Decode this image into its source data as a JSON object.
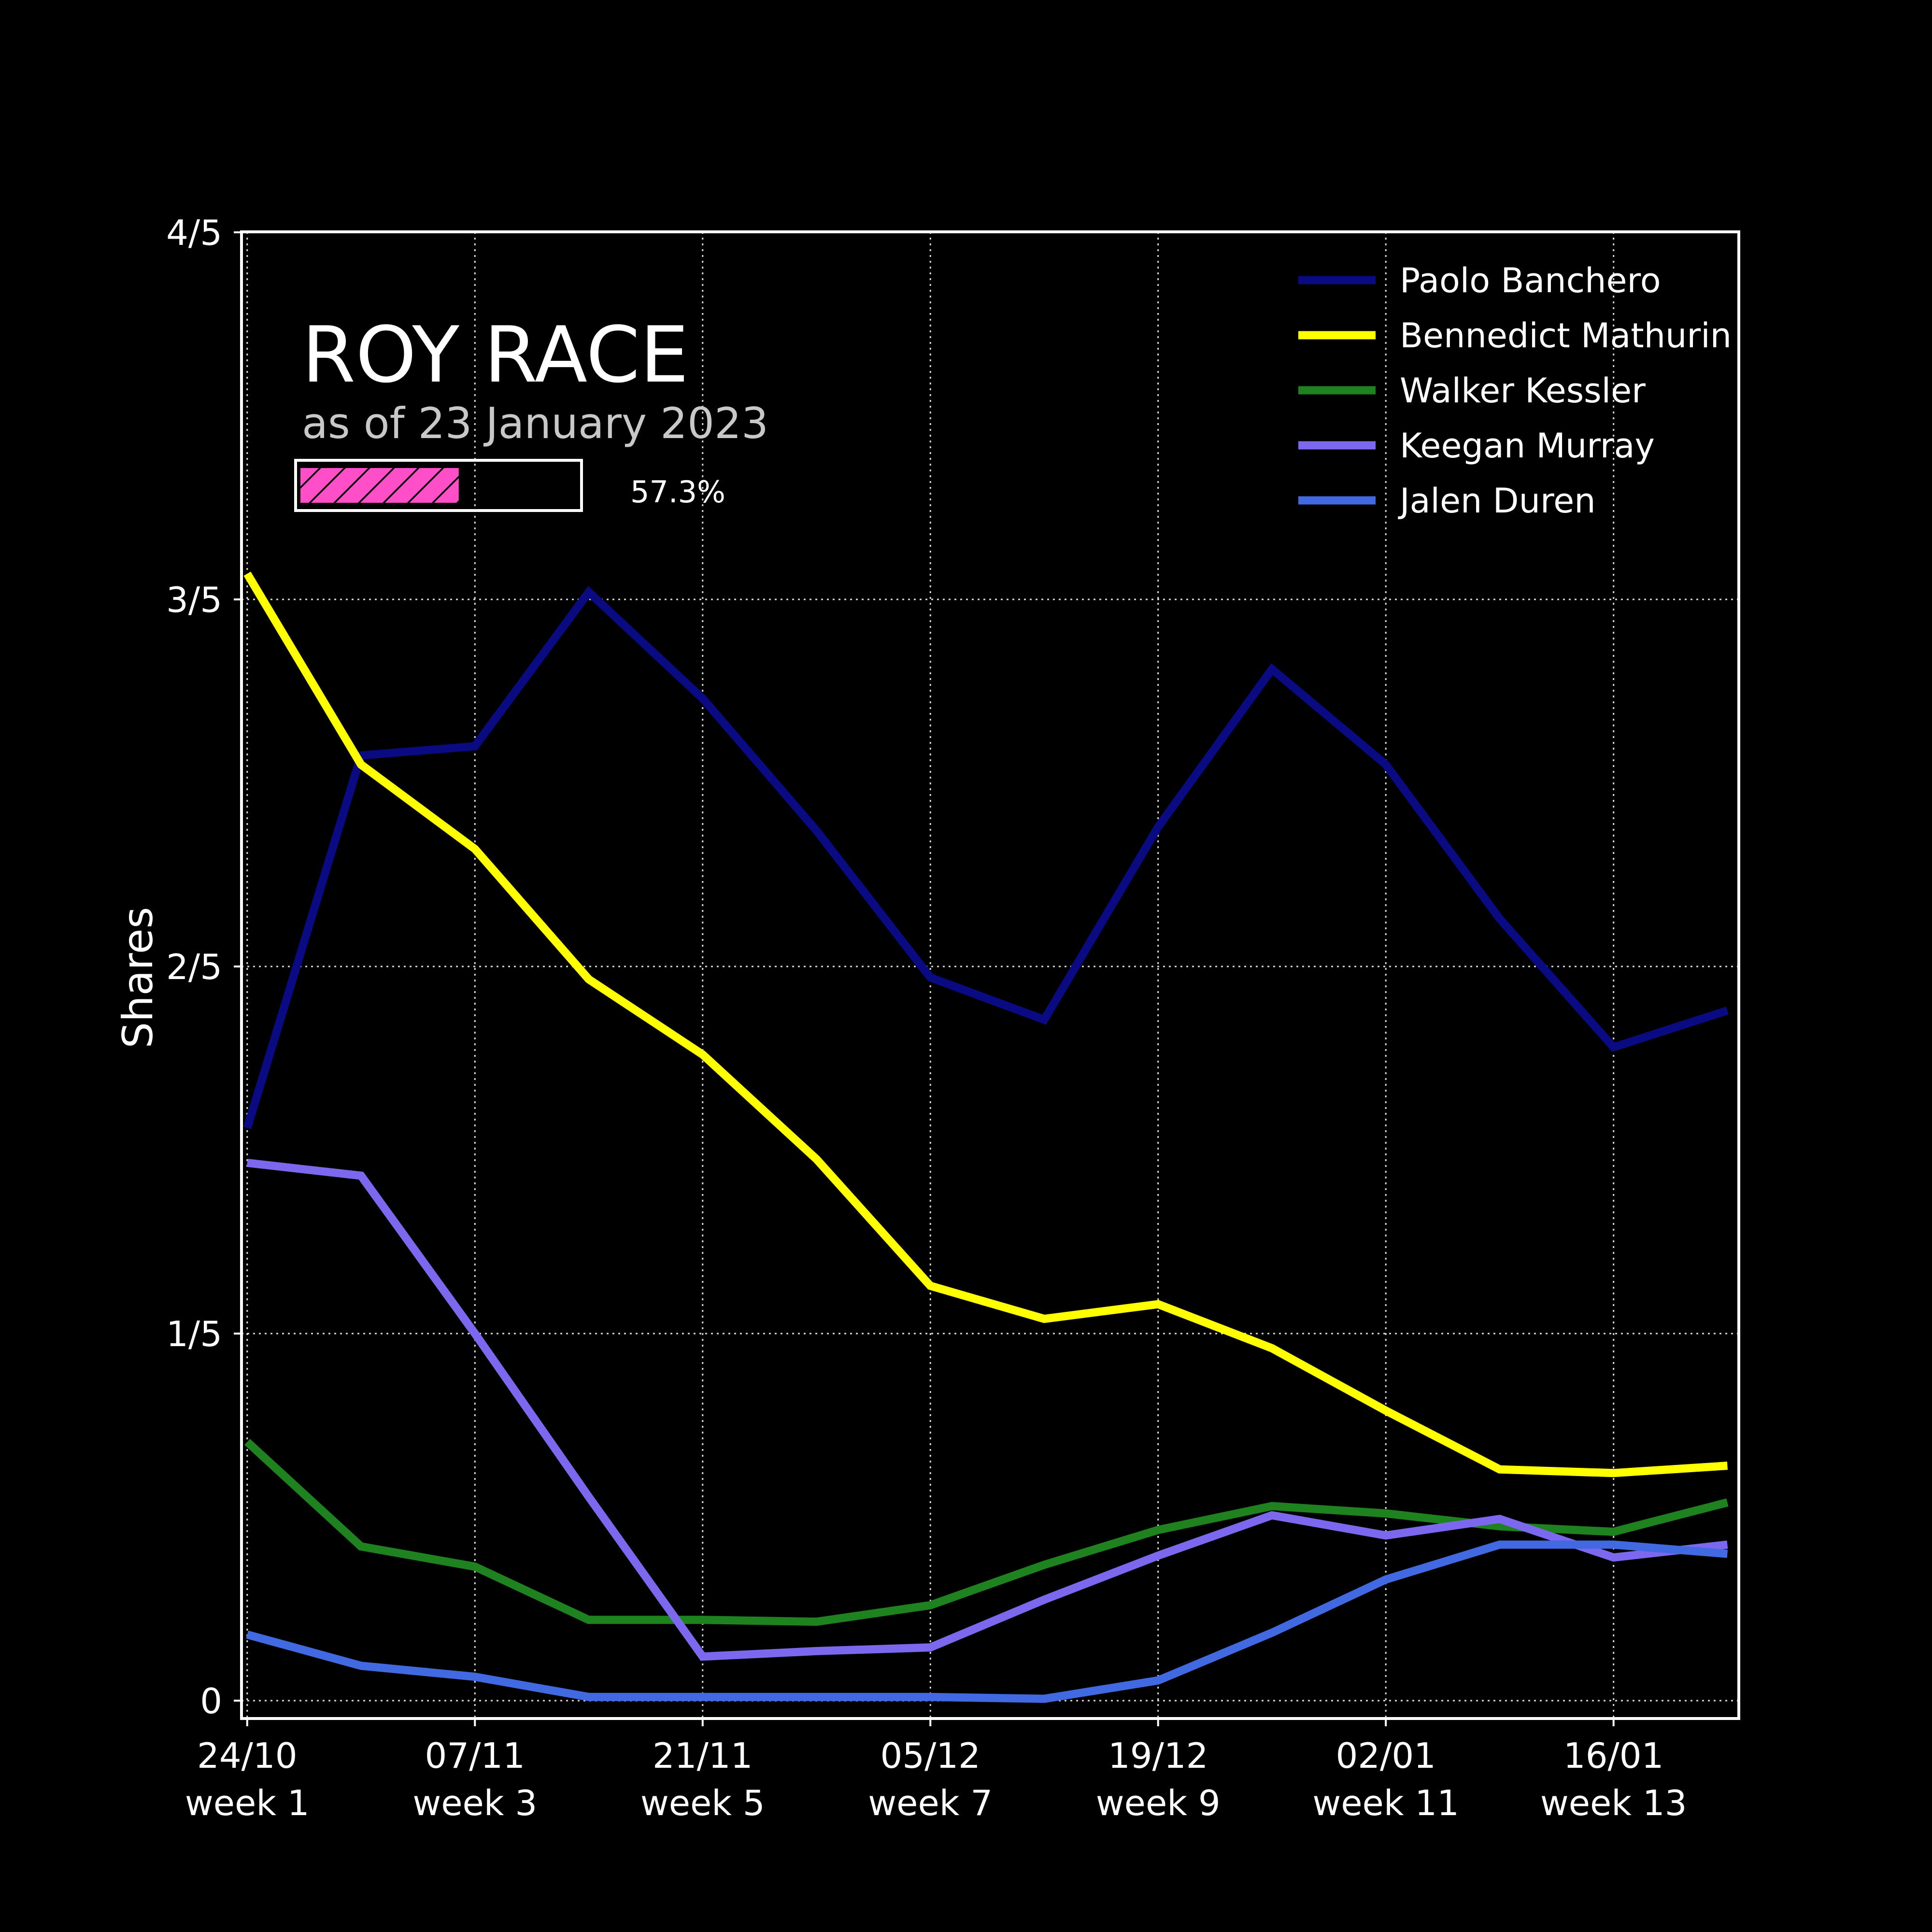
{
  "chart_data": {
    "type": "line",
    "title": "ROY RACE",
    "subtitle": "as of 23 January 2023",
    "progress": {
      "value": 0.573,
      "label": "57.3%",
      "color": "#ff4fc8"
    },
    "ylabel": "Shares",
    "xlabel": "",
    "ylim": [
      0,
      0.8
    ],
    "yticks": [
      {
        "value": 0,
        "label": "0"
      },
      {
        "value": 0.2,
        "label": "1/5"
      },
      {
        "value": 0.4,
        "label": "2/5"
      },
      {
        "value": 0.6,
        "label": "3/5"
      },
      {
        "value": 0.8,
        "label": "4/5"
      }
    ],
    "x": [
      1,
      2,
      3,
      4,
      5,
      6,
      7,
      8,
      9,
      10,
      11,
      12,
      13,
      14
    ],
    "xlim": [
      0.95,
      14.1
    ],
    "xticks": [
      {
        "value": 1,
        "line1": "24/10",
        "line2": "week 1"
      },
      {
        "value": 3,
        "line1": "07/11",
        "line2": "week 3"
      },
      {
        "value": 5,
        "line1": "21/11",
        "line2": "week 5"
      },
      {
        "value": 7,
        "line1": "05/12",
        "line2": "week 7"
      },
      {
        "value": 9,
        "line1": "19/12",
        "line2": "week 9"
      },
      {
        "value": 11,
        "line1": "02/01",
        "line2": "week 11"
      },
      {
        "value": 13,
        "line1": "16/01",
        "line2": "week 13"
      }
    ],
    "grid": true,
    "legend_position": "top-right",
    "series": [
      {
        "name": "Paolo Banchero",
        "color": "#0a0a82",
        "values": [
          0.312,
          0.515,
          0.52,
          0.604,
          0.546,
          0.474,
          0.394,
          0.371,
          0.476,
          0.562,
          0.51,
          0.426,
          0.356,
          0.376
        ]
      },
      {
        "name": "Bennedict Mathurin",
        "color": "#ffff00",
        "values": [
          0.614,
          0.51,
          0.464,
          0.393,
          0.352,
          0.295,
          0.226,
          0.208,
          0.216,
          0.192,
          0.158,
          0.126,
          0.124,
          0.128
        ]
      },
      {
        "name": "Walker Kessler",
        "color": "#1e821e",
        "values": [
          0.141,
          0.084,
          0.073,
          0.044,
          0.044,
          0.043,
          0.052,
          0.074,
          0.093,
          0.106,
          0.102,
          0.095,
          0.092,
          0.108
        ]
      },
      {
        "name": "Keegan Murray",
        "color": "#7b68ee",
        "values": [
          0.293,
          0.286,
          0.2,
          0.111,
          0.024,
          0.027,
          0.029,
          0.055,
          0.079,
          0.101,
          0.09,
          0.099,
          0.078,
          0.085
        ]
      },
      {
        "name": "Jalen Duren",
        "color": "#4169e1",
        "values": [
          0.036,
          0.019,
          0.013,
          0.002,
          0.002,
          0.002,
          0.002,
          0.001,
          0.011,
          0.037,
          0.066,
          0.085,
          0.085,
          0.08
        ]
      }
    ]
  }
}
